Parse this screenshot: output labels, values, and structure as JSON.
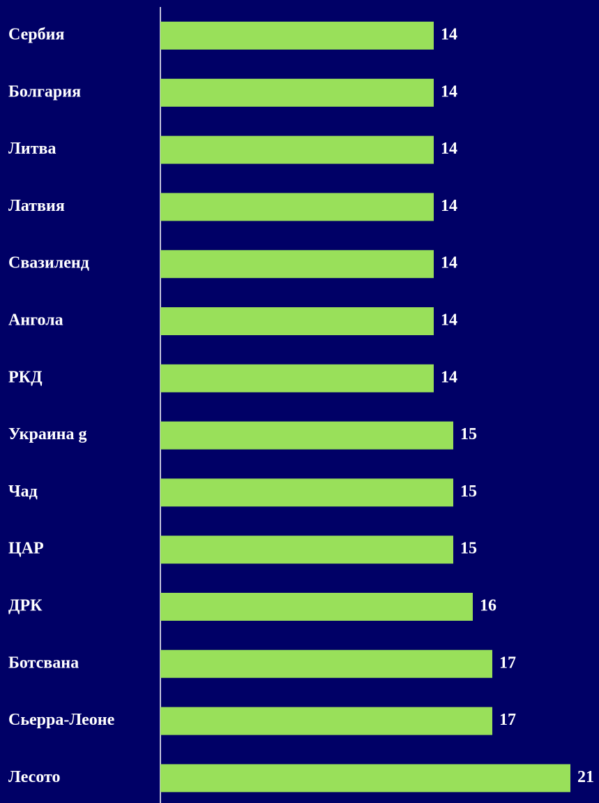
{
  "chart_data": {
    "type": "barh",
    "categories": [
      "Сербия",
      "Болгария",
      "Литва",
      "Латвия",
      "Свазиленд",
      "Ангола",
      "РКД",
      "Украина g",
      "Чад",
      "ЦАР",
      "ДРК",
      "Ботсвана",
      "Сьерра-Леоне",
      "Лесото"
    ],
    "values": [
      14,
      14,
      14,
      14,
      14,
      14,
      14,
      15,
      15,
      15,
      16,
      17,
      17,
      21
    ],
    "color": "#99e05a"
  }
}
